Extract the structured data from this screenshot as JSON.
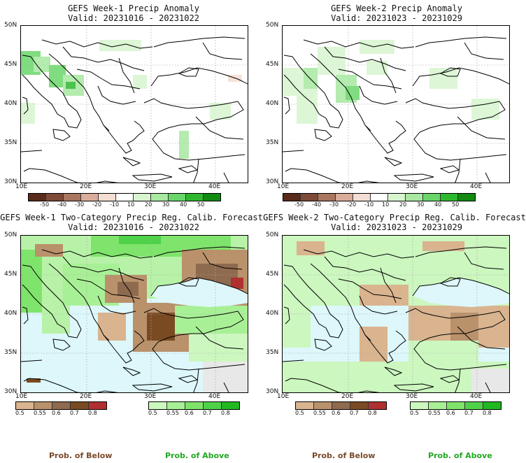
{
  "panels": {
    "tl": {
      "title1": "GEFS Week-1 Precip Anomaly",
      "title2": "Valid: 20231016 - 20231022"
    },
    "tr": {
      "title1": "GEFS Week-2 Precip Anomaly",
      "title2": "Valid: 20231023 - 20231029"
    },
    "bl": {
      "title1": "GEFS Week-1 Two-Category Precip Reg. Calib. Forecast",
      "title2": "Valid: 20231016 - 20231022"
    },
    "br": {
      "title1": "GEFS Week-2 Two-Category Precip Reg. Calib. Forecast",
      "title2": "Valid: 20231023 - 20231029"
    }
  },
  "axes": {
    "lat_labels": [
      "50N",
      "45N",
      "40N",
      "35N",
      "30N"
    ],
    "lon_labels": [
      "10E",
      "20E",
      "30E",
      "40E"
    ]
  },
  "anomaly_colorbar": {
    "labels": [
      "-50",
      "-40",
      "-30",
      "-20",
      "-10",
      "10",
      "20",
      "30",
      "40",
      "50"
    ],
    "colors": [
      "#5a2a1a",
      "#7d4a38",
      "#a9765f",
      "#d9ad9a",
      "#f4ddd2",
      "#ffffff",
      "#d8f5d0",
      "#a8e8a0",
      "#6ad66a",
      "#2eb82e",
      "#128a12"
    ]
  },
  "prob_colorbars": {
    "below_labels": [
      "0.5",
      "0.55",
      "0.6",
      "0.7",
      "0.8"
    ],
    "above_labels": [
      "0.5",
      "0.55",
      "0.6",
      "0.7",
      "0.8"
    ],
    "below_colors": [
      "#d9b48f",
      "#b9916b",
      "#8e6a4f",
      "#7a4a22",
      "#b03030"
    ],
    "above_colors": [
      "#ccf7bf",
      "#a8f095",
      "#7fe46b",
      "#4fd14a",
      "#22b822"
    ]
  },
  "footer": {
    "left_below": "Prob. of Below",
    "left_above": "Prob. of Above",
    "right_below": "Prob. of Below",
    "right_above": "Prob. of Above",
    "below_color": "#7a4a2a",
    "above_color": "#22a822"
  }
}
